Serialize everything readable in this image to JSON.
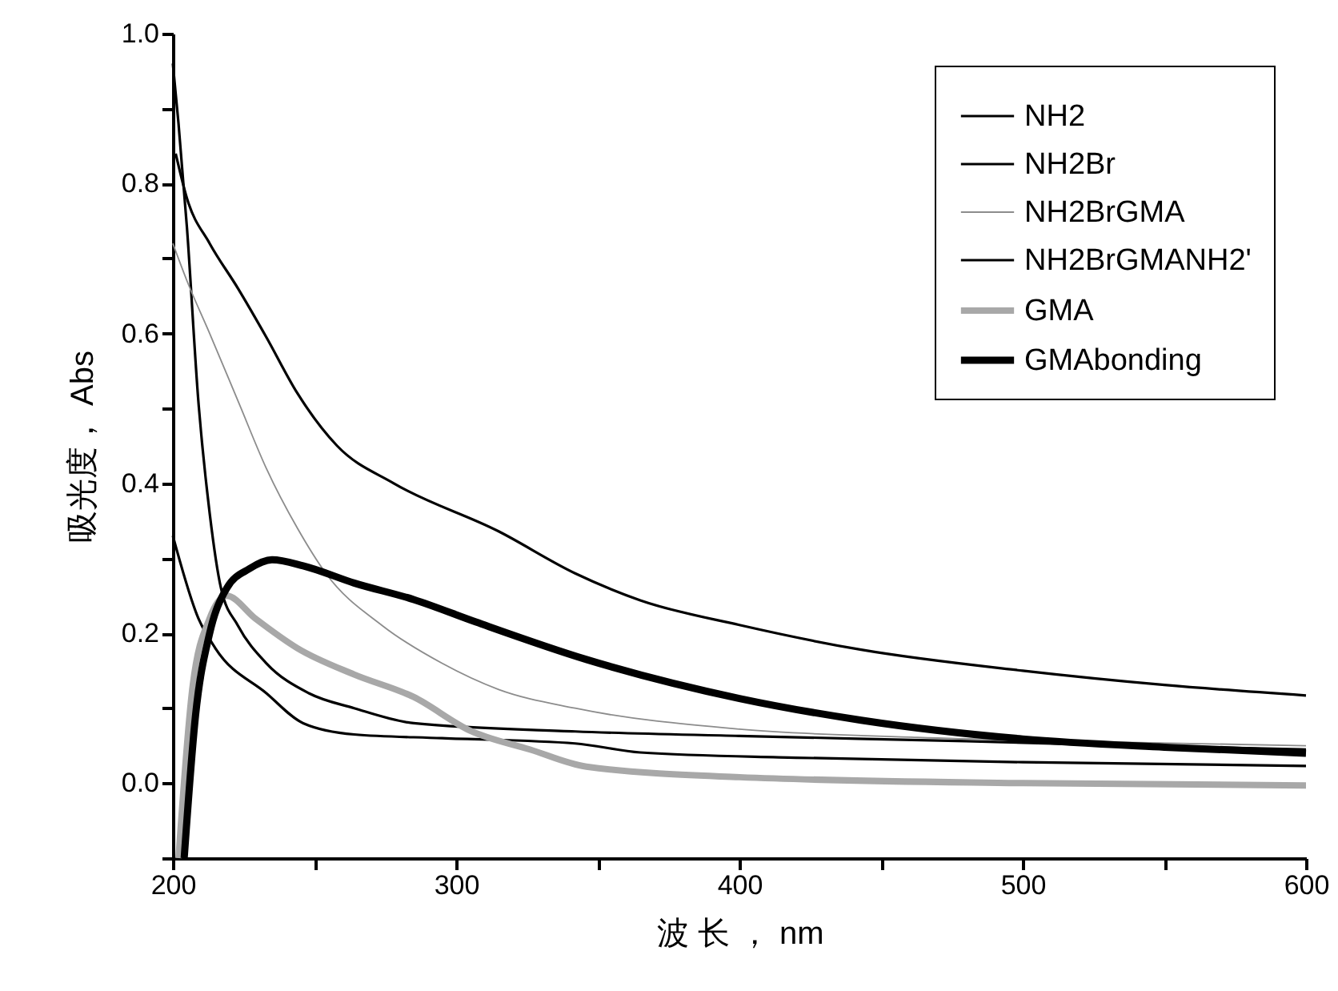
{
  "chart_data": {
    "type": "line",
    "xlabel": "波 长 ， nm",
    "ylabel": "吸光度， Abs",
    "xlim": [
      200,
      600
    ],
    "ylim": [
      -0.1,
      1.0
    ],
    "xticks": [
      200,
      {
        "value": 250,
        "label": null
      },
      300,
      {
        "value": 350,
        "label": null
      },
      400,
      {
        "value": 450,
        "label": null
      },
      500,
      {
        "value": 550,
        "label": null
      },
      600
    ],
    "yticks": [
      {
        "value": -0.1,
        "label": null
      },
      {
        "value": 0,
        "label": "0.0"
      },
      {
        "value": 0.1,
        "label": null
      },
      {
        "value": 0.2,
        "label": "0.2"
      },
      {
        "value": 0.3,
        "label": null
      },
      {
        "value": 0.4,
        "label": "0.4"
      },
      {
        "value": 0.5,
        "label": null
      },
      {
        "value": 0.6,
        "label": "0.6"
      },
      {
        "value": 0.7,
        "label": null
      },
      {
        "value": 0.8,
        "label": "0.8"
      },
      {
        "value": 0.9,
        "label": null
      },
      {
        "value": 1.0,
        "label": "1.0"
      }
    ],
    "legend": "top right",
    "grid": false,
    "marker": "none",
    "line_style": "solid",
    "series": [
      {
        "name": "NH2",
        "color": "#000000",
        "x": [
          201,
          205,
          213,
          223,
          233,
          244,
          258,
          278,
          315,
          342,
          365,
          400,
          443,
          500,
          550,
          600
        ],
        "values": [
          0.84,
          0.78,
          0.72,
          0.66,
          0.595,
          0.52,
          0.45,
          0.4,
          0.336,
          0.28,
          0.244,
          0.211,
          0.178,
          0.15,
          0.131,
          0.117
        ]
      },
      {
        "name": "NH2Br",
        "color": "#000000",
        "x": [
          200,
          202,
          205,
          209,
          213,
          217,
          223,
          233,
          248,
          264,
          285,
          342,
          400,
          480,
          540,
          600
        ],
        "values": [
          0.96,
          0.88,
          0.74,
          0.51,
          0.36,
          0.26,
          0.21,
          0.16,
          0.12,
          0.1,
          0.08,
          0.069,
          0.063,
          0.056,
          0.05,
          0.045
        ]
      },
      {
        "name": "NH2BrGMA",
        "color": "#8c8c8c",
        "x": [
          200,
          205,
          213,
          223,
          233,
          244,
          254,
          274,
          295,
          315,
          342,
          400,
          463,
          530,
          600
        ],
        "values": [
          0.72,
          0.67,
          0.6,
          0.51,
          0.42,
          0.34,
          0.28,
          0.21,
          0.16,
          0.125,
          0.1,
          0.072,
          0.061,
          0.055,
          0.05
        ]
      },
      {
        "name": "NH2BrGMANH2'",
        "color": "#000000",
        "x": [
          200,
          209,
          215,
          233,
          246,
          264,
          295,
          342,
          365,
          420,
          500,
          600
        ],
        "values": [
          0.33,
          0.22,
          0.18,
          0.12,
          0.08,
          0.065,
          0.06,
          0.053,
          0.041,
          0.034,
          0.028,
          0.023
        ]
      },
      {
        "name": "GMA",
        "color": "#a8a8a8",
        "x": [
          202,
          207,
          213,
          219,
          229,
          244,
          264,
          285,
          305,
          326,
          346,
          400,
          500,
          600
        ],
        "values": [
          -0.1,
          0.13,
          0.22,
          0.25,
          0.22,
          0.18,
          0.145,
          0.115,
          0.07,
          0.045,
          0.022,
          0.008,
          0.0,
          -0.003
        ]
      },
      {
        "name": "GMAbonding",
        "color": "#000000",
        "x": [
          204,
          208,
          213,
          219,
          227,
          235,
          246,
          264,
          285,
          307,
          346,
          400,
          443,
          500,
          550,
          600
        ],
        "values": [
          -0.1,
          0.09,
          0.2,
          0.26,
          0.286,
          0.298,
          0.29,
          0.267,
          0.245,
          0.215,
          0.165,
          0.113,
          0.084,
          0.059,
          0.048,
          0.04
        ]
      }
    ]
  }
}
